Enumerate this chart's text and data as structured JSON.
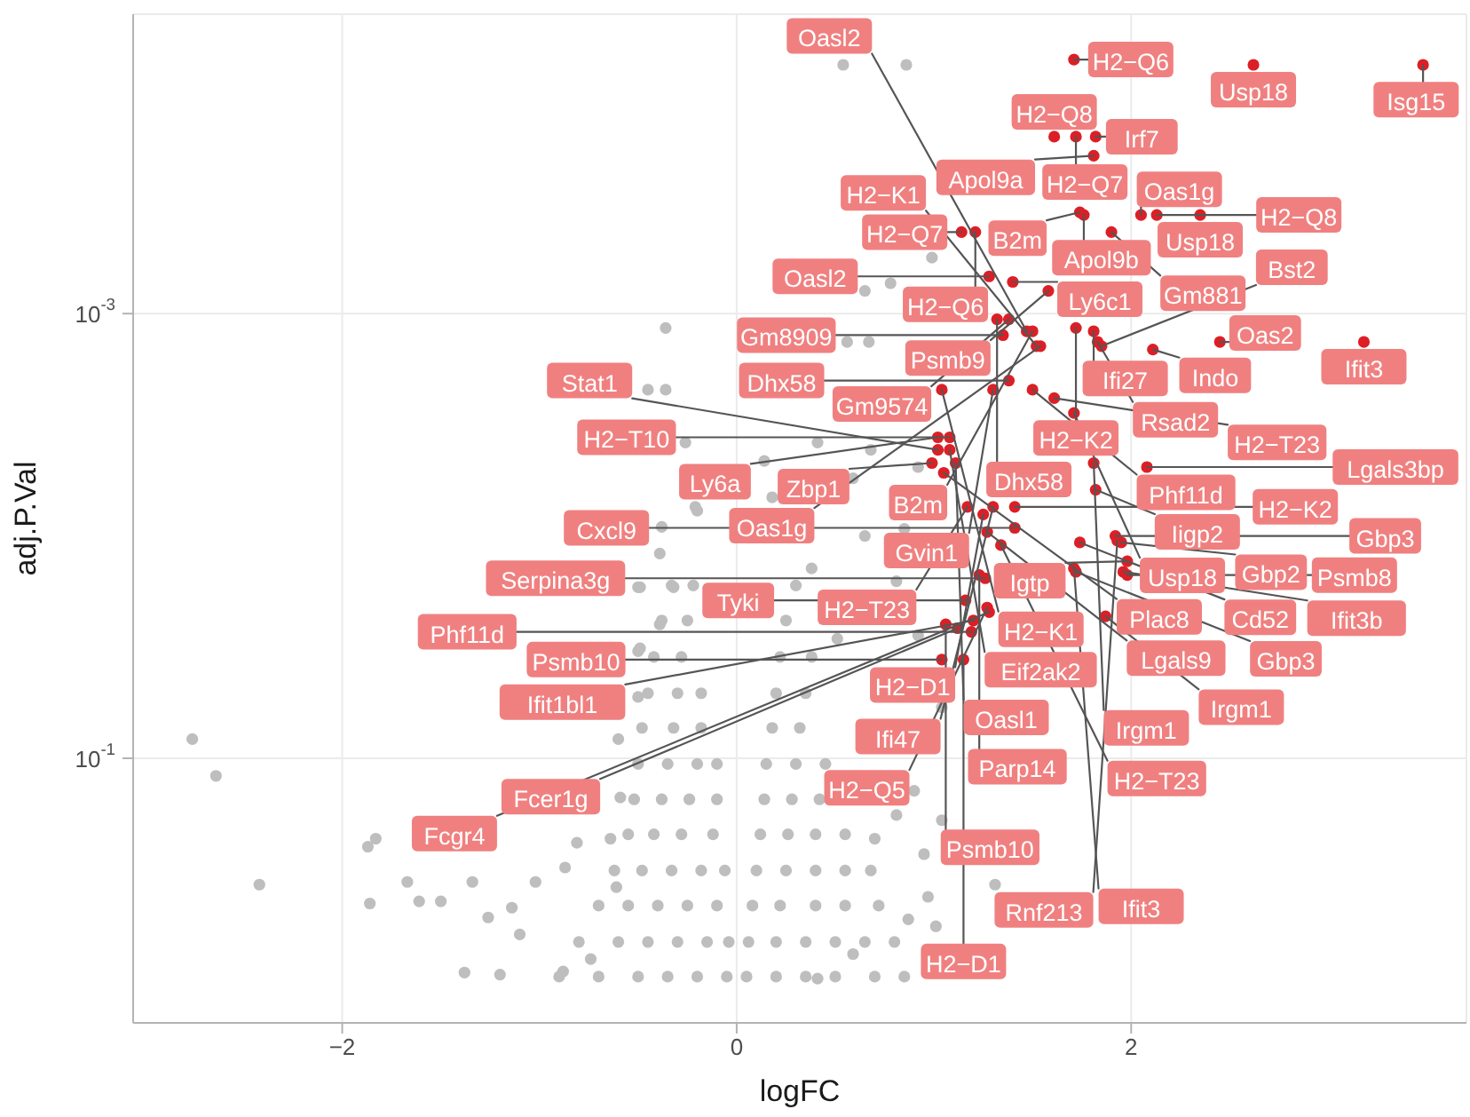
{
  "chart_data": {
    "type": "scatter",
    "xlabel": "logFC",
    "ylabel": "adj.P.Val",
    "log": "y",
    "xlim": [
      -3.06,
      3.7
    ],
    "xticks": [
      {
        "value": -2,
        "label": "−2"
      },
      0,
      2
    ],
    "ylim": [
      1.55,
      4.5e-05
    ],
    "yticks": [
      {
        "value": 0.001,
        "label": "10$^{-3}$"
      },
      {
        "value": 0.1,
        "label": "10$^{-1}$"
      }
    ],
    "grid": true,
    "marker": "circle",
    "series": [
      {
        "color": "#bebebe",
        "x": [
          -2.76,
          -2.64,
          -2.42,
          -1.87,
          -1.83,
          -1.86,
          -1.67,
          -1.61,
          -1.5,
          -1.38,
          -1.2,
          -1.34,
          -1.26,
          -1.14,
          -1.1,
          -1.02,
          -0.87,
          -0.81,
          -0.64,
          -0.6,
          -0.5,
          -0.36,
          -0.45,
          -0.36,
          -0.26,
          -0.21,
          -0.38,
          -0.32,
          -0.39,
          -0.5,
          -0.5,
          -0.59,
          -0.61,
          -0.88,
          -0.74,
          0.54,
          0.86,
          0.99,
          0.78,
          0.65,
          0.56,
          0.67,
          0.14,
          0.92,
          0.68,
          0.41,
          0.59,
          0.18,
          -0.2,
          0.65,
          0.85,
          0.38,
          -0.49,
          -0.39,
          0.81,
          0.92,
          0.51,
          -0.49,
          1.31,
          1.04,
          1.01,
          0.87,
          0.97,
          0.9,
          0.81,
          0.7,
          0.59,
          0.41,
          0.95,
          1.04,
          -0.9,
          -0.7,
          -0.5,
          -0.35,
          -0.2,
          -0.05,
          0.05,
          0.2,
          0.35,
          0.5,
          0.7,
          0.85,
          -0.8,
          -0.6,
          -0.45,
          -0.3,
          -0.15,
          -0.04,
          0.06,
          0.2,
          0.35,
          0.5,
          0.65,
          0.8,
          -0.7,
          -0.55,
          -0.4,
          -0.25,
          -0.1,
          0.08,
          0.22,
          0.4,
          0.55,
          0.72,
          -0.62,
          -0.48,
          -0.33,
          -0.18,
          -0.06,
          0.1,
          0.25,
          0.4,
          0.55,
          0.68,
          -0.55,
          -0.42,
          -0.28,
          -0.12,
          0.12,
          0.26,
          0.4,
          0.55,
          -0.52,
          -0.38,
          -0.24,
          -0.1,
          0.14,
          0.28,
          0.42,
          -0.5,
          -0.35,
          -0.2,
          -0.1,
          0.15,
          0.3,
          0.45,
          -0.48,
          -0.32,
          -0.18,
          0.18,
          0.32,
          -0.45,
          -0.3,
          -0.18,
          0.2,
          0.35,
          -0.42,
          -0.28,
          0.22,
          0.38,
          -0.38,
          -0.25,
          0.25,
          -0.33,
          -0.22,
          0.3
        ],
        "values": [
          0.082,
          0.12,
          0.37,
          0.25,
          0.23,
          0.45,
          0.36,
          0.44,
          0.44,
          0.92,
          0.94,
          0.36,
          0.52,
          0.47,
          0.62,
          0.36,
          0.31,
          0.24,
          0.23,
          0.082,
          0.017,
          0.00116,
          0.0022,
          0.0022,
          0.0038,
          0.0074,
          0.0091,
          0.017,
          0.025,
          0.033,
          0.053,
          0.15,
          0.38,
          0.91,
          0.8,
          7.6e-05,
          7.6e-05,
          0.00056,
          0.00073,
          0.00079,
          0.00134,
          0.00134,
          0.0046,
          0.0049,
          0.0041,
          0.0038,
          0.0055,
          0.0067,
          0.0077,
          0.01,
          0.0093,
          0.014,
          0.017,
          0.012,
          0.016,
          0.028,
          0.029,
          0.032,
          0.37,
          0.19,
          0.57,
          0.53,
          0.42,
          0.14,
          0.18,
          0.23,
          0.76,
          0.98,
          0.27,
          0.059,
          0.96,
          0.96,
          0.96,
          0.96,
          0.96,
          0.96,
          0.96,
          0.96,
          0.96,
          0.96,
          0.96,
          0.96,
          0.67,
          0.67,
          0.67,
          0.67,
          0.67,
          0.67,
          0.67,
          0.67,
          0.67,
          0.67,
          0.67,
          0.67,
          0.46,
          0.46,
          0.46,
          0.46,
          0.46,
          0.46,
          0.46,
          0.46,
          0.46,
          0.46,
          0.32,
          0.32,
          0.32,
          0.32,
          0.32,
          0.32,
          0.32,
          0.32,
          0.32,
          0.32,
          0.22,
          0.22,
          0.22,
          0.22,
          0.22,
          0.22,
          0.22,
          0.22,
          0.153,
          0.153,
          0.153,
          0.153,
          0.153,
          0.153,
          0.153,
          0.106,
          0.106,
          0.106,
          0.106,
          0.106,
          0.106,
          0.106,
          0.073,
          0.073,
          0.073,
          0.073,
          0.073,
          0.051,
          0.051,
          0.051,
          0.051,
          0.051,
          0.035,
          0.035,
          0.035,
          0.035,
          0.024,
          0.024,
          0.024,
          0.0167,
          0.0167,
          0.0167
        ]
      },
      {
        "color": "#dc1f26",
        "x": [
          1.61,
          1.71,
          1.82,
          2.62,
          3.48,
          1.72,
          1.76,
          2.05,
          2.35,
          1.74,
          1.81,
          1.14,
          1.21,
          1.4,
          2.13,
          1.81,
          1.28,
          1.9,
          1.58,
          1.72,
          2.11,
          1.32,
          1.35,
          1.38,
          1.5,
          2.45,
          1.83,
          3.18,
          1.04,
          1.3,
          1.38,
          1.5,
          1.85,
          1.71,
          1.54,
          1.02,
          1.08,
          1.02,
          1.08,
          1.61,
          1.05,
          1.81,
          1.52,
          1.47,
          0.99,
          1.11,
          1.17,
          1.82,
          2.08,
          1.25,
          1.27,
          1.3,
          1.41,
          1.74,
          1.95,
          1.23,
          1.26,
          1.41,
          1.98,
          1.93,
          1.16,
          1.2,
          1.34,
          1.87,
          1.06,
          1.12,
          1.28,
          1.72,
          1.96,
          1.92,
          1.04,
          1.19,
          1.27,
          1.98,
          1.15,
          1.71
        ],
        "values": [
          0.00016,
          7.2e-05,
          0.00016,
          7.6e-05,
          7.6e-05,
          0.00016,
          0.00036,
          0.00036,
          0.00036,
          0.00035,
          0.000195,
          0.00043,
          0.00043,
          0.00072,
          0.00036,
          0.0012,
          0.00068,
          0.00043,
          0.00079,
          0.00116,
          0.00145,
          0.00106,
          0.00125,
          0.00106,
          0.0012,
          0.00134,
          0.00134,
          0.00134,
          0.0022,
          0.0022,
          0.002,
          0.0022,
          0.0014,
          0.0028,
          0.0014,
          0.0036,
          0.0036,
          0.0041,
          0.0041,
          0.0024,
          0.0052,
          0.0047,
          0.0014,
          0.0012,
          0.0047,
          0.0047,
          0.0074,
          0.0062,
          0.0049,
          0.008,
          0.0096,
          0.0074,
          0.0074,
          0.0107,
          0.0107,
          0.015,
          0.0155,
          0.0092,
          0.015,
          0.0105,
          0.0195,
          0.024,
          0.011,
          0.023,
          0.025,
          0.026,
          0.022,
          0.0145,
          0.0145,
          0.01,
          0.036,
          0.027,
          0.021,
          0.013,
          0.036,
          0.014
        ]
      }
    ],
    "annotations": [
      {
        "text": "H2−Q8",
        "x": 1.61,
        "y": 0.00016
      },
      {
        "text": "H2−Q6",
        "x": 1.71,
        "y": 7.2e-05
      },
      {
        "text": "Irf7",
        "x": 1.82,
        "y": 0.00016
      },
      {
        "text": "Usp18",
        "x": 2.62,
        "y": 7.6e-05
      },
      {
        "text": "Isg15",
        "x": 3.48,
        "y": 7.6e-05
      },
      {
        "text": "H2−Q7",
        "x": 1.72,
        "y": 0.00016
      },
      {
        "text": "Apol9b",
        "x": 1.76,
        "y": 0.00036
      },
      {
        "text": "Oas1g",
        "x": 2.05,
        "y": 0.00036
      },
      {
        "text": "Usp18",
        "x": 2.35,
        "y": 0.00036
      },
      {
        "text": "B2m",
        "x": 1.74,
        "y": 0.00035
      },
      {
        "text": "Apol9a",
        "x": 1.81,
        "y": 0.000195
      },
      {
        "text": "H2−Q7",
        "x": 1.14,
        "y": 0.00043
      },
      {
        "text": "H2−Q6",
        "x": 1.21,
        "y": 0.00043
      },
      {
        "text": "Ly6c1",
        "x": 1.4,
        "y": 0.00072
      },
      {
        "text": "H2−Q8",
        "x": 2.13,
        "y": 0.00036
      },
      {
        "text": "Ifi27",
        "x": 1.81,
        "y": 0.0012
      },
      {
        "text": "Oasl2",
        "x": 1.28,
        "y": 0.00068
      },
      {
        "text": "Gm881",
        "x": 1.9,
        "y": 0.00043
      },
      {
        "text": "Psmb9",
        "x": 1.58,
        "y": 0.00079
      },
      {
        "text": "H2−K2",
        "x": 1.72,
        "y": 0.00116
      },
      {
        "text": "Indo",
        "x": 2.11,
        "y": 0.00145
      },
      {
        "text": "Dhx58",
        "x": 1.32,
        "y": 0.00106
      },
      {
        "text": "Gm8909",
        "x": 1.35,
        "y": 0.00125
      },
      {
        "text": "Gm9574",
        "x": 1.38,
        "y": 0.00106
      },
      {
        "text": "B2m",
        "x": 1.5,
        "y": 0.0012
      },
      {
        "text": "Oas2",
        "x": 2.45,
        "y": 0.00134
      },
      {
        "text": "Rsad2",
        "x": 1.83,
        "y": 0.00134
      },
      {
        "text": "Ifit3",
        "x": 3.18,
        "y": 0.00134
      },
      {
        "text": "H2−K1",
        "x": 1.04,
        "y": 0.0022
      },
      {
        "text": "Gvin1",
        "x": 1.3,
        "y": 0.0022
      },
      {
        "text": "Dhx58",
        "x": 1.38,
        "y": 0.002
      },
      {
        "text": "Phf11d",
        "x": 1.5,
        "y": 0.0022
      },
      {
        "text": "Bst2",
        "x": 1.85,
        "y": 0.0014
      },
      {
        "text": "Usp18",
        "x": 1.71,
        "y": 0.0028
      },
      {
        "text": "Oas1g",
        "x": 1.54,
        "y": 0.0014
      },
      {
        "text": "Ly6a",
        "x": 1.02,
        "y": 0.0036
      },
      {
        "text": "H2−T10",
        "x": 1.08,
        "y": 0.0036
      },
      {
        "text": "Stat1",
        "x": 1.02,
        "y": 0.0041
      },
      {
        "text": "Eif2ak2",
        "x": 1.08,
        "y": 0.0041
      },
      {
        "text": "H2−T23",
        "x": 1.61,
        "y": 0.0024
      },
      {
        "text": "Plac8",
        "x": 1.05,
        "y": 0.0052
      },
      {
        "text": "Irgm1",
        "x": 1.81,
        "y": 0.0047
      },
      {
        "text": "H2−K1",
        "x": 1.52,
        "y": 0.0014
      },
      {
        "text": "Oasl2",
        "x": 1.47,
        "y": 0.0012
      },
      {
        "text": "Zbp1",
        "x": 0.99,
        "y": 0.0047
      },
      {
        "text": "Oasl1",
        "x": 1.11,
        "y": 0.0047
      },
      {
        "text": "H2−T23",
        "x": 1.17,
        "y": 0.0074
      },
      {
        "text": "Iigp2",
        "x": 1.82,
        "y": 0.0062
      },
      {
        "text": "Lgals3bp",
        "x": 2.08,
        "y": 0.0049
      },
      {
        "text": "H2−D1",
        "x": 1.25,
        "y": 0.008
      },
      {
        "text": "Lgals9",
        "x": 1.27,
        "y": 0.0096
      },
      {
        "text": "Ifi47",
        "x": 1.3,
        "y": 0.0074
      },
      {
        "text": "H2−K2",
        "x": 1.41,
        "y": 0.0074
      },
      {
        "text": "Cd52",
        "x": 1.74,
        "y": 0.0107
      },
      {
        "text": "Gbp2",
        "x": 1.95,
        "y": 0.0107
      },
      {
        "text": "Parp14",
        "x": 1.23,
        "y": 0.015
      },
      {
        "text": "Serpina3g",
        "x": 1.26,
        "y": 0.0155
      },
      {
        "text": "Cxcl9",
        "x": 1.41,
        "y": 0.0092
      },
      {
        "text": "Psmb8",
        "x": 1.98,
        "y": 0.015
      },
      {
        "text": "Rnf213",
        "x": 1.93,
        "y": 0.0105
      },
      {
        "text": "Tyki",
        "x": 1.16,
        "y": 0.0195
      },
      {
        "text": "Ifit1bl1",
        "x": 1.2,
        "y": 0.024
      },
      {
        "text": "H2−T23",
        "x": 1.34,
        "y": 0.011
      },
      {
        "text": "Irgm1",
        "x": 1.87,
        "y": 0.023
      },
      {
        "text": "Psmb10",
        "x": 1.06,
        "y": 0.025
      },
      {
        "text": "Fcer1g",
        "x": 1.12,
        "y": 0.026
      },
      {
        "text": "Fcgr4",
        "x": 1.28,
        "y": 0.022
      },
      {
        "text": "Gbp3",
        "x": 1.72,
        "y": 0.0145
      },
      {
        "text": "Ifit3b",
        "x": 1.96,
        "y": 0.0145
      },
      {
        "text": "Gbp3",
        "x": 1.92,
        "y": 0.01
      },
      {
        "text": "Psmb10",
        "x": 1.04,
        "y": 0.036
      },
      {
        "text": "Phf11d",
        "x": 1.19,
        "y": 0.027
      },
      {
        "text": "H2−Q5",
        "x": 1.27,
        "y": 0.021
      },
      {
        "text": "Igtp",
        "x": 1.98,
        "y": 0.013
      },
      {
        "text": "H2−D1",
        "x": 1.15,
        "y": 0.036
      },
      {
        "text": "Ifit3",
        "x": 1.71,
        "y": 0.014
      }
    ]
  }
}
